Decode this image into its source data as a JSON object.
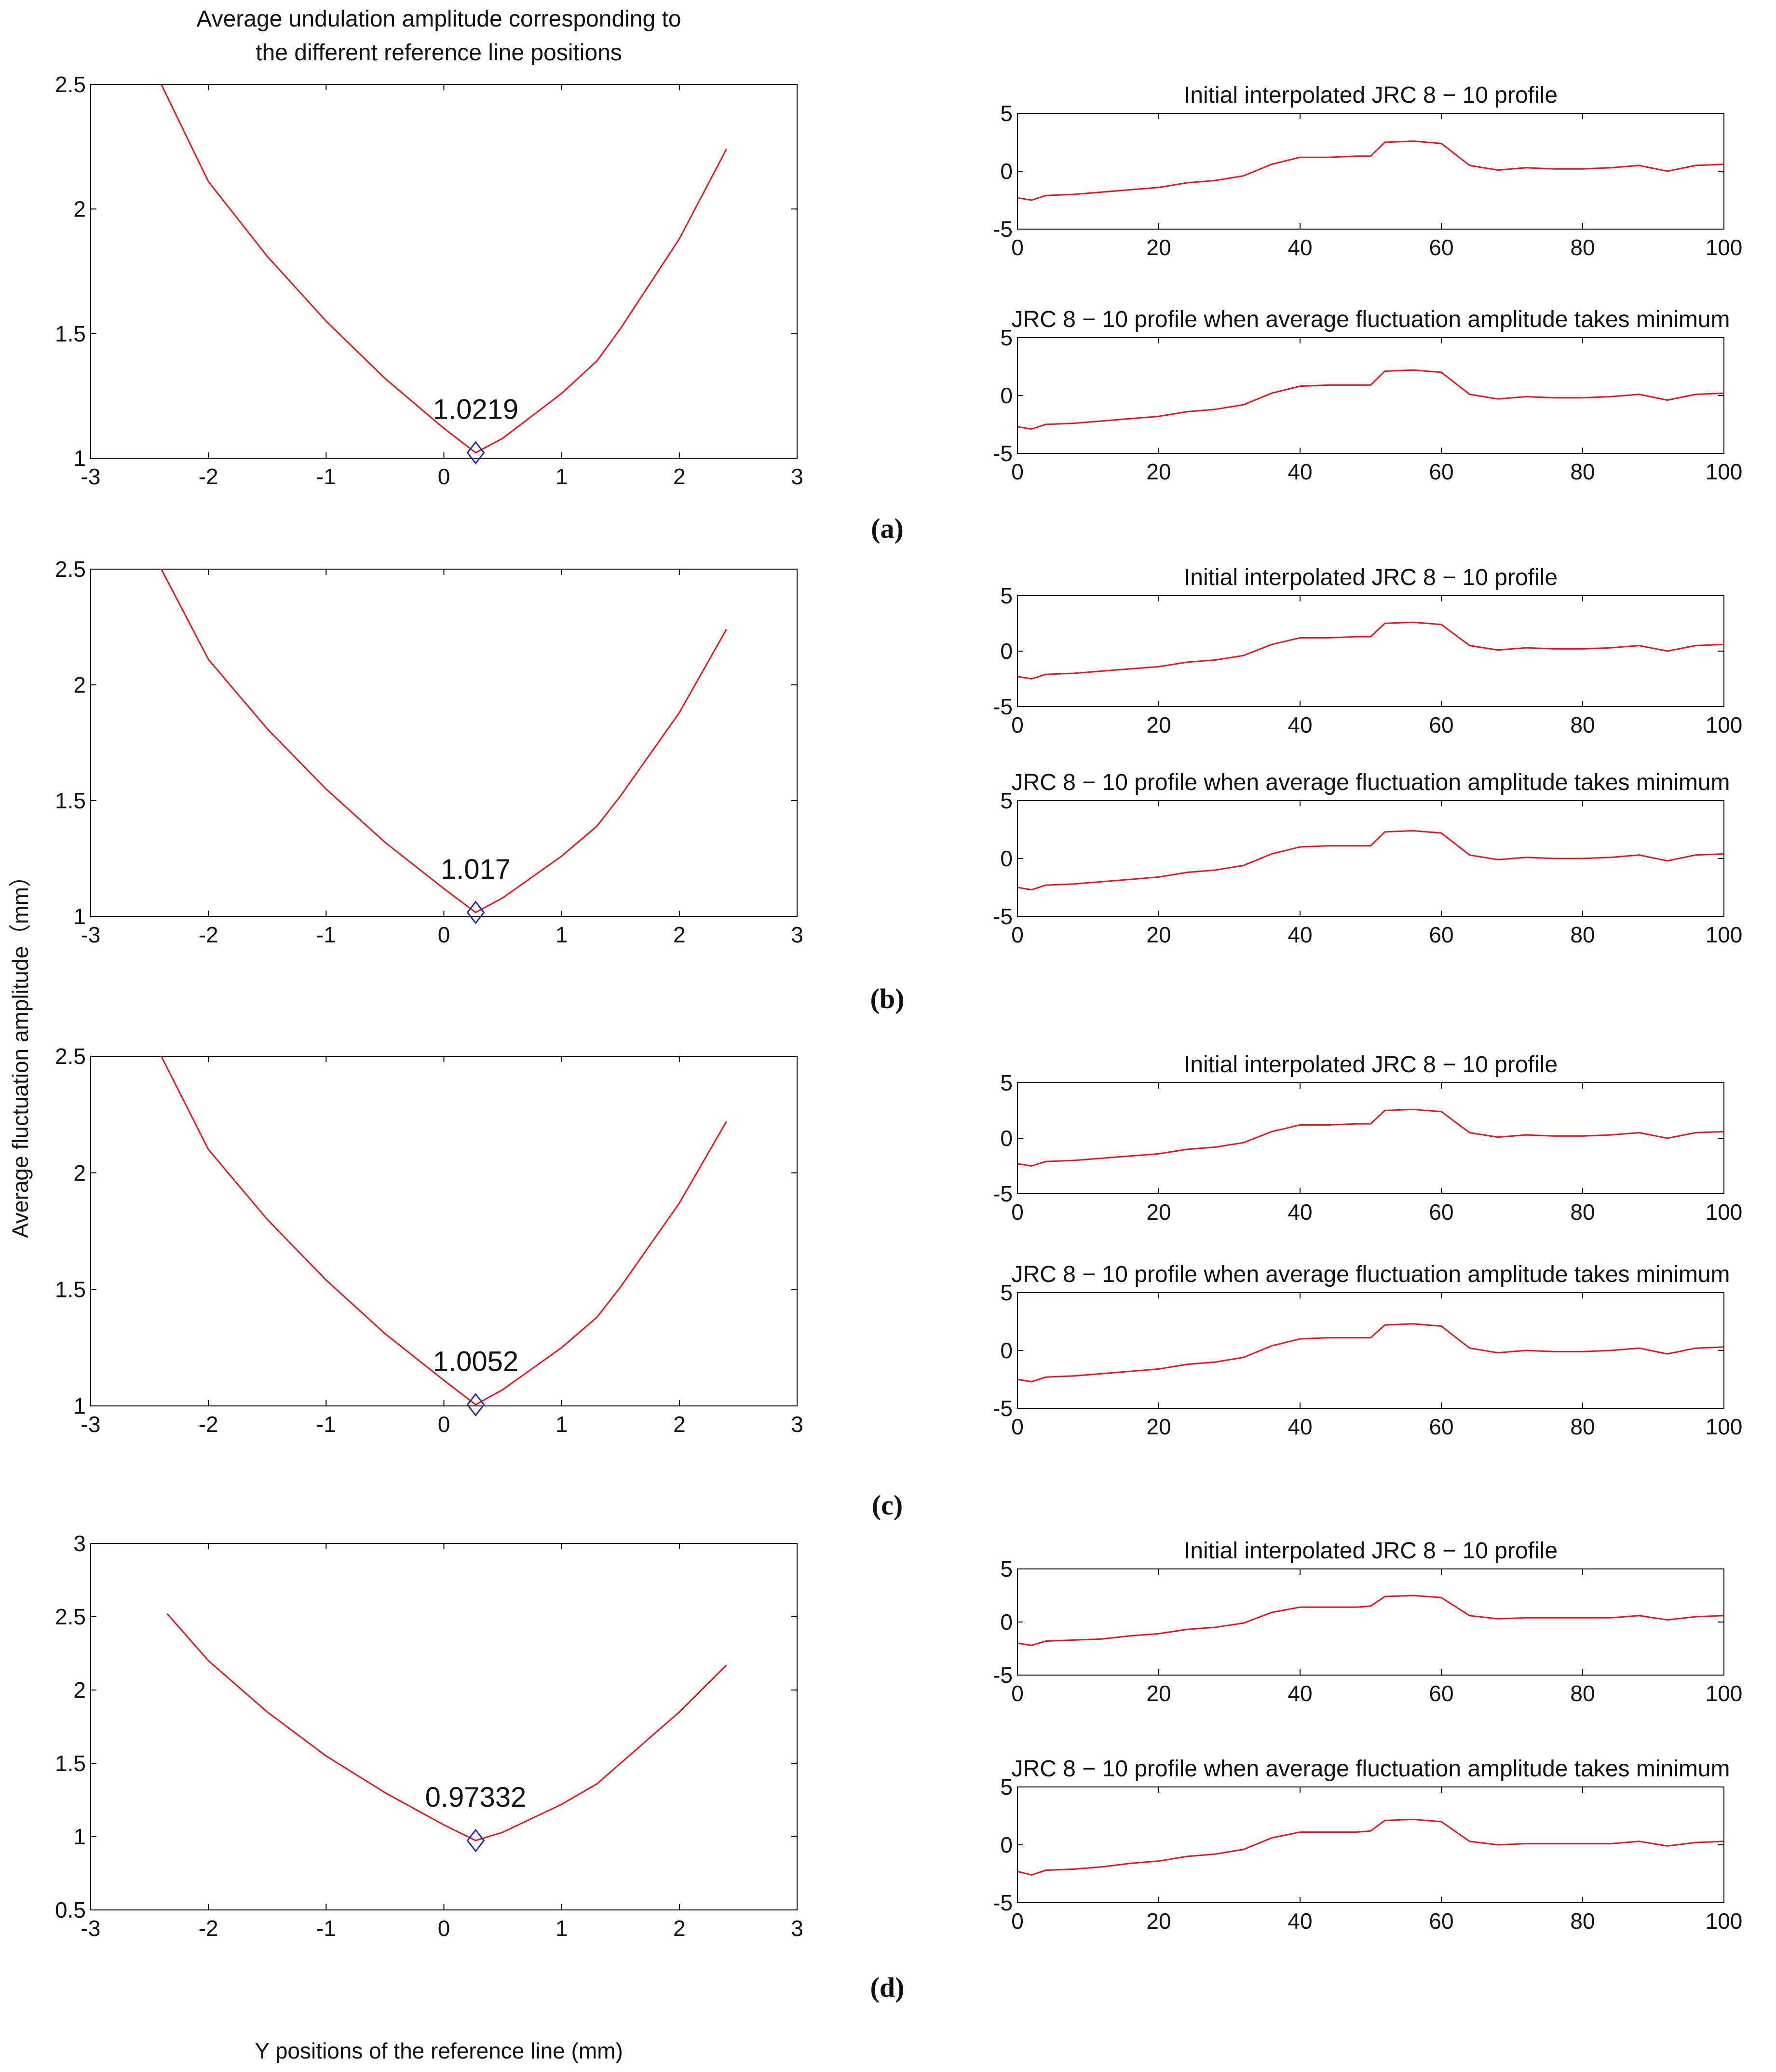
{
  "figure": {
    "y_axis_label": "Average fluctuation amplitude（mm）",
    "x_axis_label": "Y positions of the reference line (mm)",
    "left_title_line1": "Average undulation amplitude corresponding to",
    "left_title_line2": "the different reference line positions",
    "colors": {
      "curve": "#e8141d",
      "marker": "#2a2aa8",
      "axes": "#000000"
    }
  },
  "chart_data": [
    {
      "panel": "(a)",
      "type": "line",
      "title": "Average undulation amplitude corresponding to the different reference line positions",
      "xlabel": "Y positions of the reference line (mm)",
      "ylabel": "Average fluctuation amplitude（mm）",
      "xlim": [
        -3,
        3
      ],
      "ylim": [
        1,
        2.5
      ],
      "xticks": [
        "-3",
        "-2",
        "-1",
        "0",
        "1",
        "2",
        "3"
      ],
      "yticks": [
        "1",
        "1.5",
        "2",
        "2.5"
      ],
      "x": [
        -2.4,
        -2.0,
        -1.5,
        -1.0,
        -0.5,
        0.0,
        0.27,
        0.5,
        1.0,
        1.3,
        1.5,
        2.0,
        2.4
      ],
      "y": [
        2.5,
        2.11,
        1.81,
        1.55,
        1.32,
        1.12,
        1.0219,
        1.08,
        1.26,
        1.39,
        1.52,
        1.88,
        2.24
      ],
      "min_point": {
        "x": 0.27,
        "y": 1.0219,
        "label": "1.0219"
      },
      "profiles": [
        {
          "title": "Initial interpolated JRC 8 − 10 profile",
          "xlim": [
            0,
            100
          ],
          "ylim": [
            -5,
            5
          ],
          "xticks": [
            "0",
            "20",
            "40",
            "60",
            "80",
            "100"
          ],
          "yticks": [
            "-5",
            "0",
            "5"
          ],
          "x": [
            0,
            2,
            4,
            8,
            12,
            16,
            20,
            24,
            28,
            32,
            36,
            40,
            44,
            48,
            50,
            52,
            56,
            60,
            64,
            68,
            72,
            76,
            80,
            84,
            88,
            92,
            96,
            100
          ],
          "y": [
            -2.3,
            -2.5,
            -2.1,
            -2.0,
            -1.8,
            -1.6,
            -1.4,
            -1.0,
            -0.8,
            -0.4,
            0.6,
            1.2,
            1.2,
            1.3,
            1.3,
            2.5,
            2.6,
            2.4,
            0.5,
            0.1,
            0.3,
            0.2,
            0.2,
            0.3,
            0.5,
            0.0,
            0.5,
            0.6
          ]
        },
        {
          "title": "JRC 8 − 10 profile when average fluctuation amplitude takes minimum",
          "xlim": [
            0,
            100
          ],
          "ylim": [
            -5,
            5
          ],
          "xticks": [
            "0",
            "20",
            "40",
            "60",
            "80",
            "100"
          ],
          "yticks": [
            "-5",
            "0",
            "5"
          ],
          "x": [
            0,
            2,
            4,
            8,
            12,
            16,
            20,
            24,
            28,
            32,
            36,
            40,
            44,
            48,
            50,
            52,
            56,
            60,
            64,
            68,
            72,
            76,
            80,
            84,
            88,
            92,
            96,
            100
          ],
          "y": [
            -2.7,
            -2.9,
            -2.5,
            -2.4,
            -2.2,
            -2.0,
            -1.8,
            -1.4,
            -1.2,
            -0.8,
            0.2,
            0.8,
            0.9,
            0.9,
            0.9,
            2.1,
            2.2,
            2.0,
            0.1,
            -0.3,
            -0.1,
            -0.2,
            -0.2,
            -0.1,
            0.1,
            -0.4,
            0.1,
            0.2
          ]
        }
      ]
    },
    {
      "panel": "(b)",
      "type": "line",
      "xlabel": "Y positions of the reference line (mm)",
      "ylabel": "Average fluctuation amplitude（mm）",
      "xlim": [
        -3,
        3
      ],
      "ylim": [
        1,
        2.5
      ],
      "xticks": [
        "-3",
        "-2",
        "-1",
        "0",
        "1",
        "2",
        "3"
      ],
      "yticks": [
        "1",
        "1.5",
        "2",
        "2.5"
      ],
      "x": [
        -2.4,
        -2.0,
        -1.5,
        -1.0,
        -0.5,
        0.0,
        0.27,
        0.5,
        1.0,
        1.3,
        1.5,
        2.0,
        2.4
      ],
      "y": [
        2.5,
        2.11,
        1.81,
        1.55,
        1.32,
        1.12,
        1.017,
        1.08,
        1.26,
        1.39,
        1.52,
        1.88,
        2.24
      ],
      "min_point": {
        "x": 0.27,
        "y": 1.017,
        "label": "1.017"
      },
      "profiles": [
        {
          "title": "Initial interpolated JRC 8 − 10 profile",
          "xlim": [
            0,
            100
          ],
          "ylim": [
            -5,
            5
          ],
          "xticks": [
            "0",
            "20",
            "40",
            "60",
            "80",
            "100"
          ],
          "yticks": [
            "-5",
            "0",
            "5"
          ],
          "x": [
            0,
            2,
            4,
            8,
            12,
            16,
            20,
            24,
            28,
            32,
            36,
            40,
            44,
            48,
            50,
            52,
            56,
            60,
            64,
            68,
            72,
            76,
            80,
            84,
            88,
            92,
            96,
            100
          ],
          "y": [
            -2.3,
            -2.5,
            -2.1,
            -2.0,
            -1.8,
            -1.6,
            -1.4,
            -1.0,
            -0.8,
            -0.4,
            0.6,
            1.2,
            1.2,
            1.3,
            1.3,
            2.5,
            2.6,
            2.4,
            0.5,
            0.1,
            0.3,
            0.2,
            0.2,
            0.3,
            0.5,
            0.0,
            0.5,
            0.6
          ]
        },
        {
          "title": "JRC 8 − 10 profile when average fluctuation amplitude takes minimum",
          "xlim": [
            0,
            100
          ],
          "ylim": [
            -5,
            5
          ],
          "xticks": [
            "0",
            "20",
            "40",
            "60",
            "80",
            "100"
          ],
          "yticks": [
            "-5",
            "0",
            "5"
          ],
          "x": [
            0,
            2,
            4,
            8,
            12,
            16,
            20,
            24,
            28,
            32,
            36,
            40,
            44,
            48,
            50,
            52,
            56,
            60,
            64,
            68,
            72,
            76,
            80,
            84,
            88,
            92,
            96,
            100
          ],
          "y": [
            -2.5,
            -2.7,
            -2.3,
            -2.2,
            -2.0,
            -1.8,
            -1.6,
            -1.2,
            -1.0,
            -0.6,
            0.4,
            1.0,
            1.1,
            1.1,
            1.1,
            2.3,
            2.4,
            2.2,
            0.3,
            -0.1,
            0.1,
            0.0,
            0.0,
            0.1,
            0.3,
            -0.2,
            0.3,
            0.4
          ]
        }
      ]
    },
    {
      "panel": "(c)",
      "type": "line",
      "xlabel": "Y positions of the reference line (mm)",
      "ylabel": "Average fluctuation amplitude（mm）",
      "xlim": [
        -3,
        3
      ],
      "ylim": [
        1,
        2.5
      ],
      "xticks": [
        "-3",
        "-2",
        "-1",
        "0",
        "1",
        "2",
        "3"
      ],
      "yticks": [
        "1",
        "1.5",
        "2",
        "2.5"
      ],
      "x": [
        -2.4,
        -2.0,
        -1.5,
        -1.0,
        -0.5,
        0.0,
        0.27,
        0.5,
        1.0,
        1.3,
        1.5,
        2.0,
        2.4
      ],
      "y": [
        2.5,
        2.1,
        1.8,
        1.54,
        1.31,
        1.11,
        1.0052,
        1.07,
        1.25,
        1.38,
        1.51,
        1.87,
        2.22
      ],
      "min_point": {
        "x": 0.27,
        "y": 1.0052,
        "label": "1.0052"
      },
      "profiles": [
        {
          "title": "Initial interpolated JRC 8 − 10 profile",
          "xlim": [
            0,
            100
          ],
          "ylim": [
            -5,
            5
          ],
          "xticks": [
            "0",
            "20",
            "40",
            "60",
            "80",
            "100"
          ],
          "yticks": [
            "-5",
            "0",
            "5"
          ],
          "x": [
            0,
            2,
            4,
            8,
            12,
            16,
            20,
            24,
            28,
            32,
            36,
            40,
            44,
            48,
            50,
            52,
            56,
            60,
            64,
            68,
            72,
            76,
            80,
            84,
            88,
            92,
            96,
            100
          ],
          "y": [
            -2.3,
            -2.5,
            -2.1,
            -2.0,
            -1.8,
            -1.6,
            -1.4,
            -1.0,
            -0.8,
            -0.4,
            0.6,
            1.2,
            1.2,
            1.3,
            1.3,
            2.5,
            2.6,
            2.4,
            0.5,
            0.1,
            0.3,
            0.2,
            0.2,
            0.3,
            0.5,
            0.0,
            0.5,
            0.6
          ]
        },
        {
          "title": "JRC 8 − 10 profile when average fluctuation amplitude takes minimum",
          "xlim": [
            0,
            100
          ],
          "ylim": [
            -5,
            5
          ],
          "xticks": [
            "0",
            "20",
            "40",
            "60",
            "80",
            "100"
          ],
          "yticks": [
            "-5",
            "0",
            "5"
          ],
          "x": [
            0,
            2,
            4,
            8,
            12,
            16,
            20,
            24,
            28,
            32,
            36,
            40,
            44,
            48,
            50,
            52,
            56,
            60,
            64,
            68,
            72,
            76,
            80,
            84,
            88,
            92,
            96,
            100
          ],
          "y": [
            -2.5,
            -2.7,
            -2.3,
            -2.2,
            -2.0,
            -1.8,
            -1.6,
            -1.2,
            -1.0,
            -0.6,
            0.4,
            1.0,
            1.1,
            1.1,
            1.1,
            2.2,
            2.3,
            2.1,
            0.2,
            -0.2,
            0.0,
            -0.1,
            -0.1,
            0.0,
            0.2,
            -0.3,
            0.2,
            0.3
          ]
        }
      ]
    },
    {
      "panel": "(d)",
      "type": "line",
      "xlabel": "Y positions of the reference line (mm)",
      "ylabel": "Average fluctuation amplitude（mm）",
      "xlim": [
        -3,
        3
      ],
      "ylim": [
        0.5,
        3
      ],
      "xticks": [
        "-3",
        "-2",
        "-1",
        "0",
        "1",
        "2",
        "3"
      ],
      "yticks": [
        "0.5",
        "1",
        "1.5",
        "2",
        "2.5",
        "3"
      ],
      "x": [
        -2.35,
        -2.0,
        -1.5,
        -1.0,
        -0.5,
        0.0,
        0.27,
        0.5,
        1.0,
        1.3,
        1.5,
        2.0,
        2.4
      ],
      "y": [
        2.52,
        2.2,
        1.85,
        1.55,
        1.3,
        1.08,
        0.97332,
        1.03,
        1.22,
        1.36,
        1.5,
        1.85,
        2.17
      ],
      "min_point": {
        "x": 0.27,
        "y": 0.97332,
        "label": "0.97332"
      },
      "profiles": [
        {
          "title": "Initial interpolated JRC 8 − 10 profile",
          "xlim": [
            0,
            100
          ],
          "ylim": [
            -5,
            5
          ],
          "xticks": [
            "0",
            "20",
            "40",
            "60",
            "80",
            "100"
          ],
          "yticks": [
            "-5",
            "0",
            "5"
          ],
          "x": [
            0,
            2,
            4,
            8,
            12,
            16,
            20,
            24,
            28,
            32,
            36,
            40,
            44,
            48,
            50,
            52,
            56,
            60,
            64,
            68,
            72,
            76,
            80,
            84,
            88,
            92,
            96,
            100
          ],
          "y": [
            -2.0,
            -2.2,
            -1.8,
            -1.7,
            -1.6,
            -1.3,
            -1.1,
            -0.7,
            -0.5,
            -0.1,
            0.9,
            1.4,
            1.4,
            1.4,
            1.5,
            2.4,
            2.5,
            2.3,
            0.6,
            0.3,
            0.4,
            0.4,
            0.4,
            0.4,
            0.6,
            0.2,
            0.5,
            0.6
          ]
        },
        {
          "title": "JRC 8 − 10 profile when average fluctuation amplitude takes minimum",
          "xlim": [
            0,
            100
          ],
          "ylim": [
            -5,
            5
          ],
          "xticks": [
            "0",
            "20",
            "40",
            "60",
            "80",
            "100"
          ],
          "yticks": [
            "-5",
            "0",
            "5"
          ],
          "x": [
            0,
            2,
            4,
            8,
            12,
            16,
            20,
            24,
            28,
            32,
            36,
            40,
            44,
            48,
            50,
            52,
            56,
            60,
            64,
            68,
            72,
            76,
            80,
            84,
            88,
            92,
            96,
            100
          ],
          "y": [
            -2.3,
            -2.6,
            -2.2,
            -2.1,
            -1.9,
            -1.6,
            -1.4,
            -1.0,
            -0.8,
            -0.4,
            0.6,
            1.1,
            1.1,
            1.1,
            1.2,
            2.1,
            2.2,
            2.0,
            0.3,
            0.0,
            0.1,
            0.1,
            0.1,
            0.1,
            0.3,
            -0.1,
            0.2,
            0.3
          ]
        }
      ]
    }
  ]
}
